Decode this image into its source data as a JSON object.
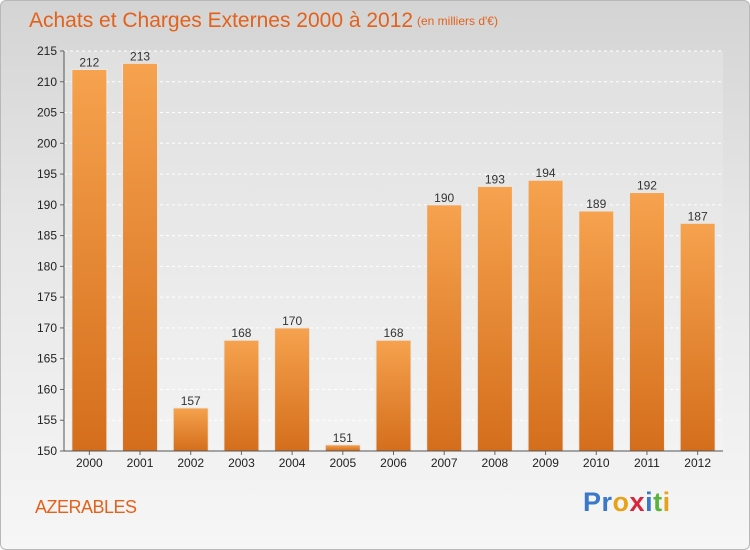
{
  "chart_data": {
    "type": "bar",
    "title": "Achats et Charges Externes 2000 à 2012",
    "subtitle": "(en milliers d'€)",
    "categories": [
      "2000",
      "2001",
      "2002",
      "2003",
      "2004",
      "2005",
      "2006",
      "2007",
      "2008",
      "2009",
      "2010",
      "2011",
      "2012"
    ],
    "values": [
      212,
      213,
      157,
      168,
      170,
      151,
      168,
      190,
      193,
      194,
      189,
      192,
      187
    ],
    "ylim": [
      150,
      215
    ],
    "yticks": [
      150,
      155,
      160,
      165,
      170,
      175,
      180,
      185,
      190,
      195,
      200,
      205,
      210,
      215
    ],
    "grid": true,
    "bar_color": "#f0913a"
  },
  "commune": "AZERABLES",
  "logo": {
    "letters": [
      "P",
      "r",
      "o",
      "x",
      "i",
      "t",
      "i"
    ],
    "colors": [
      "#3a78c9",
      "#3a78c9",
      "#e8a21a",
      "#d7263d",
      "#3a78c9",
      "#59b33c",
      "#e8a21a"
    ]
  }
}
